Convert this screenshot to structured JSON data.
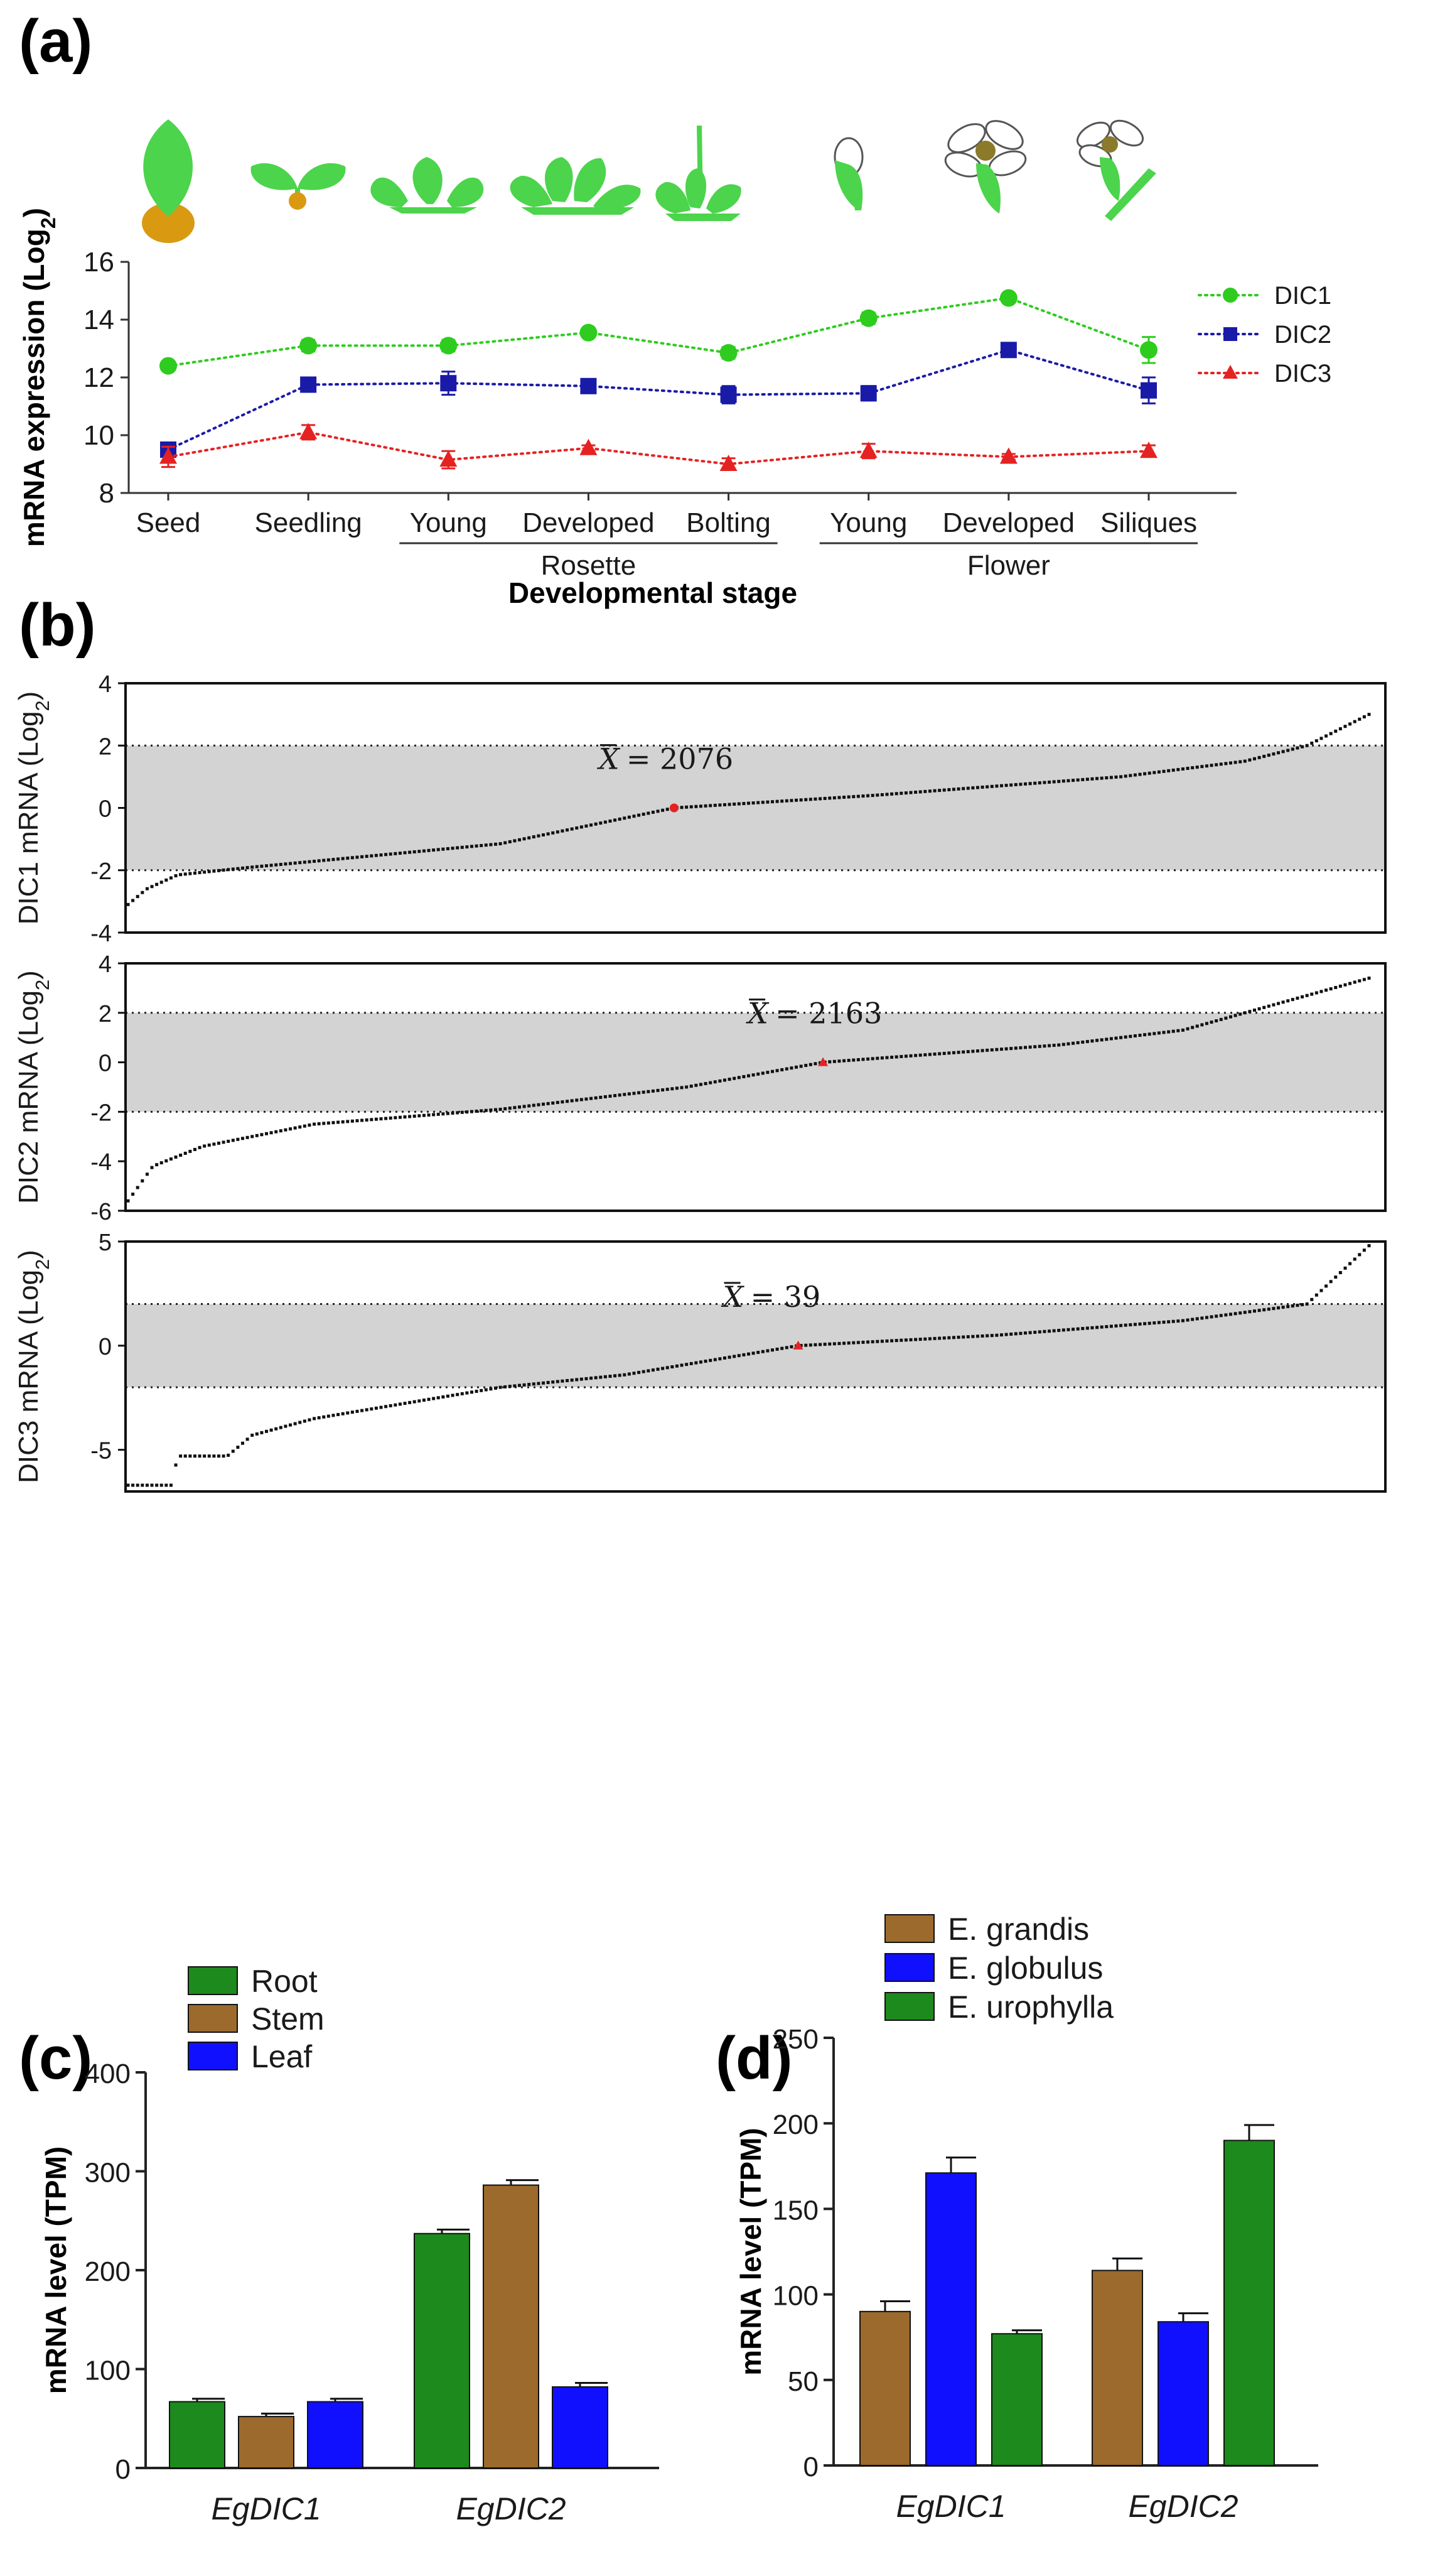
{
  "panels": {
    "a": "(a)",
    "b": "(b)",
    "c": "(c)",
    "d": "(d)"
  },
  "colors": {
    "dic1": "#2ecc1e",
    "dic2": "#1a1aa8",
    "dic3": "#e52222",
    "root": "#1d8a1d",
    "stem": "#9c6a2c",
    "leaf": "#1010ff",
    "grandis": "#9c6a2c",
    "globulus": "#1010ff",
    "urophylla": "#1d8a1d",
    "band": "#d3d3d3",
    "plant": "#4cd44c",
    "seed": "#d99a12"
  },
  "chart_data": [
    {
      "id": "a",
      "type": "line",
      "categories": [
        "Seed",
        "Seedling",
        "Young",
        "Developed",
        "Bolting",
        "Young",
        "Developed",
        "Siliques"
      ],
      "groups": [
        {
          "label": "Rosette",
          "from": 2,
          "to": 4
        },
        {
          "label": "Flower",
          "from": 5,
          "to": 7
        }
      ],
      "series": [
        {
          "name": "DIC1",
          "marker": "circle",
          "values": [
            12.4,
            13.1,
            13.1,
            13.55,
            12.85,
            14.05,
            14.75,
            12.95
          ],
          "errors": [
            0.1,
            0.2,
            0.2,
            0.1,
            0.2,
            0.2,
            0.15,
            0.45
          ]
        },
        {
          "name": "DIC2",
          "marker": "square",
          "values": [
            9.5,
            11.75,
            11.8,
            11.7,
            11.4,
            11.45,
            12.95,
            11.55
          ],
          "errors": [
            0.2,
            0.25,
            0.4,
            0.1,
            0.3,
            0.25,
            0.2,
            0.45
          ]
        },
        {
          "name": "DIC3",
          "marker": "triangle",
          "values": [
            9.25,
            10.1,
            9.15,
            9.55,
            9.0,
            9.45,
            9.25,
            9.45
          ],
          "errors": [
            0.35,
            0.25,
            0.3,
            0.1,
            0.2,
            0.25,
            0.1,
            0.2
          ]
        }
      ],
      "ylabel": "mRNA expression (Log",
      "ylabel_sub": "2",
      "ylabel_end": ")",
      "xlabel": "Developmental stage",
      "ylim": [
        8,
        16
      ],
      "yticks": [
        8,
        10,
        12,
        14,
        16
      ]
    },
    {
      "id": "b1",
      "type": "scatter",
      "ylabel": "DIC1 mRNA (Log",
      "ylabel_sub": "2",
      "ylabel_end": ")",
      "ylim": [
        -4,
        4
      ],
      "yticks": [
        -4,
        -2,
        0,
        2,
        4
      ],
      "band": [
        -2,
        2
      ],
      "n": 2076,
      "mean_label": "= 2076",
      "mean_rank": 0.44,
      "curve": [
        [
          0,
          -3.1
        ],
        [
          0.015,
          -2.6
        ],
        [
          0.04,
          -2.15
        ],
        [
          0.1,
          -1.9
        ],
        [
          0.3,
          -1.15
        ],
        [
          0.44,
          0.0
        ],
        [
          0.6,
          0.4
        ],
        [
          0.8,
          1.0
        ],
        [
          0.9,
          1.5
        ],
        [
          0.95,
          2.0
        ],
        [
          1.0,
          3.0
        ]
      ]
    },
    {
      "id": "b2",
      "type": "scatter",
      "ylabel": "DIC2 mRNA (Log",
      "ylabel_sub": "2",
      "ylabel_end": ")",
      "ylim": [
        -6,
        4
      ],
      "yticks": [
        -6,
        -4,
        -2,
        0,
        2,
        4
      ],
      "band": [
        -2,
        2
      ],
      "n": 2163,
      "mean_label": "= 2163",
      "mean_rank": 0.56,
      "curve": [
        [
          0,
          -5.6
        ],
        [
          0.02,
          -4.2
        ],
        [
          0.06,
          -3.4
        ],
        [
          0.15,
          -2.5
        ],
        [
          0.3,
          -1.9
        ],
        [
          0.45,
          -1.0
        ],
        [
          0.56,
          0.0
        ],
        [
          0.75,
          0.7
        ],
        [
          0.85,
          1.3
        ],
        [
          0.9,
          2.0
        ],
        [
          1.0,
          3.4
        ]
      ]
    },
    {
      "id": "b3",
      "type": "scatter",
      "ylabel": "DIC3 mRNA (Log",
      "ylabel_sub": "2",
      "ylabel_end": ")",
      "ylim": [
        -7,
        5
      ],
      "yticks": [
        -5,
        0,
        5
      ],
      "band": [
        -2,
        2
      ],
      "n": 39,
      "mean_label": "= 39",
      "mean_rank": 0.54,
      "curve": [
        [
          0,
          -6.7
        ],
        [
          0.035,
          -6.7
        ],
        [
          0.04,
          -5.3
        ],
        [
          0.08,
          -5.3
        ],
        [
          0.1,
          -4.3
        ],
        [
          0.15,
          -3.5
        ],
        [
          0.2,
          -3.0
        ],
        [
          0.3,
          -2.0
        ],
        [
          0.4,
          -1.4
        ],
        [
          0.54,
          0.0
        ],
        [
          0.7,
          0.5
        ],
        [
          0.85,
          1.2
        ],
        [
          0.95,
          2.0
        ],
        [
          1.0,
          4.8
        ]
      ]
    },
    {
      "id": "c",
      "type": "bar",
      "categories": [
        "EgDIC1",
        "EgDIC2"
      ],
      "series": [
        {
          "name": "Root",
          "values": [
            67,
            237
          ],
          "errors": [
            3,
            4
          ]
        },
        {
          "name": "Stem",
          "values": [
            52,
            286
          ],
          "errors": [
            3,
            5
          ]
        },
        {
          "name": "Leaf",
          "values": [
            67,
            82
          ],
          "errors": [
            3,
            4
          ]
        }
      ],
      "ylabel": "mRNA level  (TPM)",
      "ylim": [
        0,
        400
      ],
      "yticks": [
        0,
        100,
        200,
        300,
        400
      ]
    },
    {
      "id": "d",
      "type": "bar",
      "categories": [
        "EgDIC1",
        "EgDIC2"
      ],
      "series": [
        {
          "name": "E. grandis",
          "values": [
            90,
            114
          ],
          "errors": [
            6,
            7
          ]
        },
        {
          "name": "E. globulus",
          "values": [
            171,
            84
          ],
          "errors": [
            9,
            5
          ]
        },
        {
          "name": "E. urophylla",
          "values": [
            77,
            190
          ],
          "errors": [
            2,
            9
          ]
        }
      ],
      "ylabel": "mRNA level  (TPM)",
      "ylim": [
        0,
        250
      ],
      "yticks": [
        0,
        50,
        100,
        150,
        200,
        250
      ]
    }
  ],
  "mean_symbol": "X"
}
